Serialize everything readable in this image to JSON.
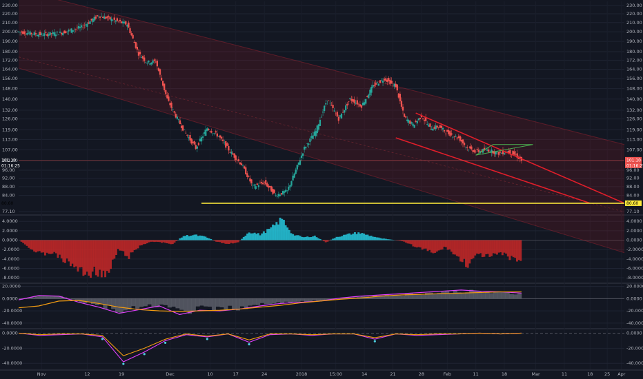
{
  "chart_data": {
    "type": "candlestick",
    "x_axis": {
      "tick_labels": [
        "Nov",
        "12",
        "19",
        "Dec",
        "10",
        "17",
        "24",
        "2018",
        "15:00",
        "14",
        "21",
        "28",
        "Feb",
        "11",
        "18",
        "Mar",
        "11",
        "18",
        "25",
        "Apr"
      ]
    },
    "price_pane": {
      "y_ticks": [
        230,
        220,
        210,
        200,
        190,
        180,
        172,
        164,
        156,
        148,
        140,
        132,
        126,
        119,
        113,
        107,
        101,
        96,
        92,
        88,
        84,
        77.1
      ],
      "y_tick_labels": [
        "230.00",
        "220.00",
        "210.00",
        "200.00",
        "190.00",
        "180.00",
        "172.00",
        "164.00",
        "156.00",
        "148.00",
        "140.00",
        "132.00",
        "126.00",
        "119.00",
        "113.00",
        "107.00",
        "101.00",
        "96.00",
        "92.00",
        "88.00",
        "84.00",
        "77.10"
      ],
      "scale": "log",
      "last_price": "101.10",
      "countdown": "01:16:25",
      "support_level": 80.6,
      "support_label": "80.60",
      "close_series": [
        {
          "x": 0,
          "y": 200
        },
        {
          "x": 8,
          "y": 197
        },
        {
          "x": 15,
          "y": 199
        },
        {
          "x": 22,
          "y": 205
        },
        {
          "x": 28,
          "y": 218
        },
        {
          "x": 33,
          "y": 213
        },
        {
          "x": 38,
          "y": 208
        },
        {
          "x": 42,
          "y": 178
        },
        {
          "x": 45,
          "y": 170
        },
        {
          "x": 48,
          "y": 171
        },
        {
          "x": 52,
          "y": 140
        },
        {
          "x": 55,
          "y": 128
        },
        {
          "x": 58,
          "y": 118
        },
        {
          "x": 62,
          "y": 108
        },
        {
          "x": 66,
          "y": 120
        },
        {
          "x": 70,
          "y": 115
        },
        {
          "x": 74,
          "y": 106
        },
        {
          "x": 78,
          "y": 99
        },
        {
          "x": 82,
          "y": 88
        },
        {
          "x": 86,
          "y": 90
        },
        {
          "x": 90,
          "y": 84
        },
        {
          "x": 94,
          "y": 86
        },
        {
          "x": 97,
          "y": 96
        },
        {
          "x": 100,
          "y": 108
        },
        {
          "x": 104,
          "y": 118
        },
        {
          "x": 108,
          "y": 140
        },
        {
          "x": 112,
          "y": 126
        },
        {
          "x": 116,
          "y": 140
        },
        {
          "x": 120,
          "y": 135
        },
        {
          "x": 124,
          "y": 150
        },
        {
          "x": 128,
          "y": 156
        },
        {
          "x": 132,
          "y": 150
        },
        {
          "x": 135,
          "y": 127
        },
        {
          "x": 138,
          "y": 122
        },
        {
          "x": 141,
          "y": 128
        },
        {
          "x": 144,
          "y": 120
        },
        {
          "x": 147,
          "y": 121
        },
        {
          "x": 150,
          "y": 117
        },
        {
          "x": 154,
          "y": 114
        },
        {
          "x": 157,
          "y": 108
        },
        {
          "x": 160,
          "y": 106
        },
        {
          "x": 164,
          "y": 107
        },
        {
          "x": 168,
          "y": 105
        },
        {
          "x": 171,
          "y": 106
        },
        {
          "x": 174,
          "y": 104
        },
        {
          "x": 176,
          "y": 101.1
        }
      ],
      "channel_lines": [
        {
          "name": "",
          "color": "#e01e2a",
          "points": [
            {
              "x": 139,
              "y": 130
            },
            {
              "x": 212,
              "y": 80.6
            }
          ]
        },
        {
          "name": "",
          "color": "#e01e2a",
          "points": [
            {
              "x": 132,
              "y": 114
            },
            {
              "x": 200,
              "y": 80.6
            }
          ]
        }
      ],
      "triangle": {
        "color": "#4caf50",
        "points": [
          {
            "x": 160,
            "y": 104
          },
          {
            "x": 180,
            "y": 110
          },
          {
            "x": 166,
            "y": 110
          }
        ]
      }
    },
    "indicator_1": {
      "type": "area",
      "y_tick_labels": [
        "4.0000",
        "2.0000",
        "0.0000",
        "-2.0000",
        "-4.0000",
        "-6.0000",
        "-8.0000"
      ],
      "values": [
        0,
        -1.8,
        -3,
        -2.6,
        -4.2,
        -5.5,
        -7.2,
        -6.5,
        -7.8,
        -2,
        -3.5,
        -1.2,
        -0.3,
        -0.5,
        -0.8,
        0.9,
        1.1,
        0.7,
        -0.3,
        -0.8,
        -0.4,
        1.8,
        1.2,
        2.5,
        4.5,
        1.2,
        0.6,
        0.9,
        -0.5,
        0.7,
        1.2,
        1.6,
        1.0,
        0.4,
        0.1,
        -0.2,
        -1.2,
        -2.0,
        -2.8,
        -1.4,
        -3.5,
        -5.2,
        -3.0,
        -3.6,
        -2.8,
        -3.8,
        -4.4
      ]
    },
    "indicator_2": {
      "type": "line",
      "y_tick_labels": [
        "20.0000",
        "0.0000",
        "-20.0000",
        "-40.0000"
      ],
      "series": [
        {
          "name": "",
          "color": "#e040fb",
          "values": [
            -2,
            5,
            4,
            -6,
            -14,
            -24,
            -18,
            -12,
            -26,
            -19,
            -20,
            -17,
            -12,
            -8,
            -6,
            -4,
            1,
            4,
            6,
            8,
            10,
            12,
            14,
            12,
            11,
            9
          ]
        },
        {
          "name": "",
          "color": "#f39c12",
          "values": [
            -15,
            -12,
            -4,
            -3,
            -8,
            -14,
            -18,
            -20,
            -21,
            -20,
            -19,
            -17,
            -14,
            -11,
            -7,
            -4,
            -1,
            1,
            4,
            6,
            7,
            8,
            9,
            10,
            11,
            11
          ]
        }
      ]
    },
    "indicator_3": {
      "type": "line",
      "y_tick_labels": [
        "0.0000",
        "-20.0000",
        "-40.0000"
      ],
      "series": [
        {
          "name": "",
          "color": "#e040fb",
          "values": [
            0,
            -3,
            -2,
            -1,
            -5,
            -38,
            -25,
            -10,
            -2,
            -5,
            -1,
            -12,
            -2,
            -1,
            -3,
            -1,
            -1,
            -8,
            -1,
            -3,
            -2,
            -1,
            0,
            -1,
            0
          ]
        },
        {
          "name": "",
          "color": "#f39c12",
          "values": [
            0,
            -2,
            -1,
            -1,
            -3,
            -30,
            -20,
            -8,
            -1,
            -4,
            -1,
            -9,
            -1,
            -1,
            -2,
            -1,
            -1,
            -6,
            -1,
            -2,
            -1,
            -1,
            0,
            -1,
            0
          ]
        }
      ]
    },
    "grid": true
  }
}
